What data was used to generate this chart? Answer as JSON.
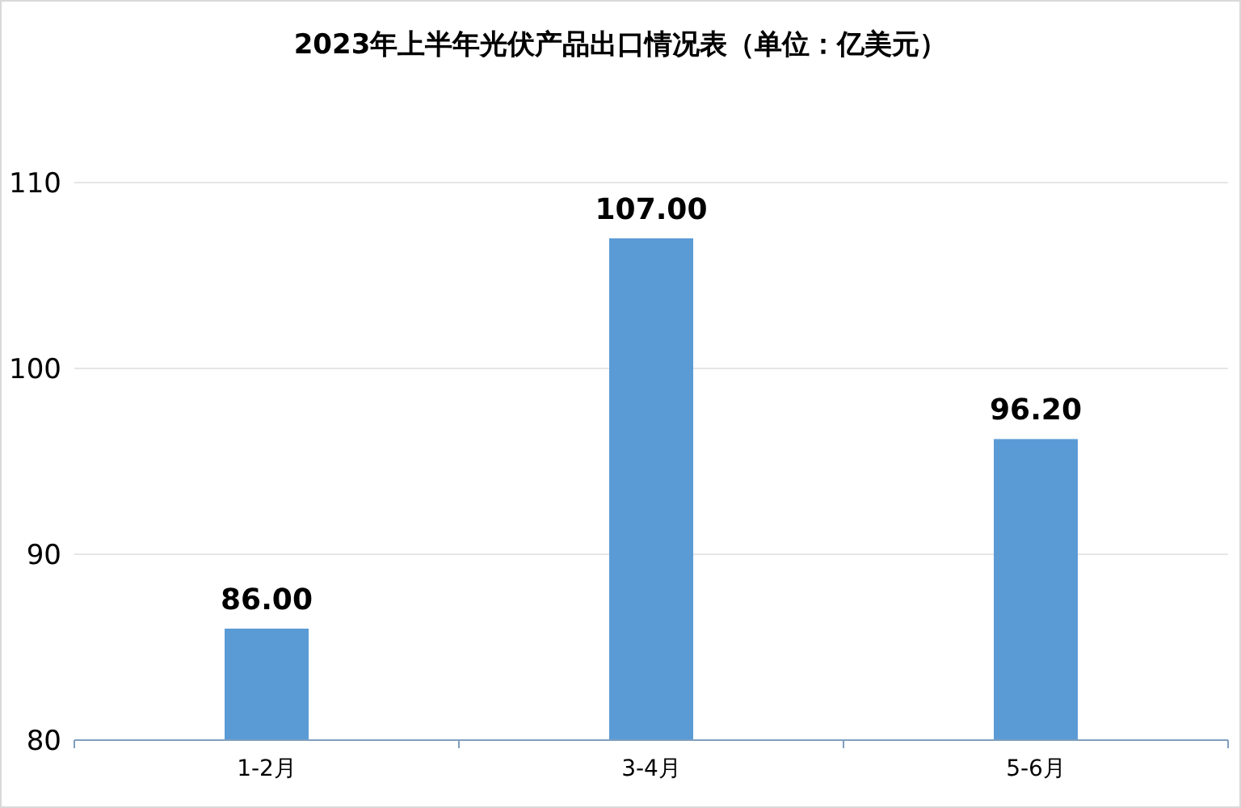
{
  "chart_data": {
    "type": "bar",
    "title": "2023年上半年光伏产品出口情况表（单位：亿美元）",
    "categories": [
      "1-2月",
      "3-4月",
      "5-6月"
    ],
    "values": [
      86.0,
      107.0,
      96.2
    ],
    "value_labels": [
      "86.00",
      "107.00",
      "96.20"
    ],
    "color": "#5b9bd5",
    "ylim": [
      80,
      110
    ],
    "yticks": [
      80,
      90,
      100,
      110
    ],
    "grid": "y"
  }
}
